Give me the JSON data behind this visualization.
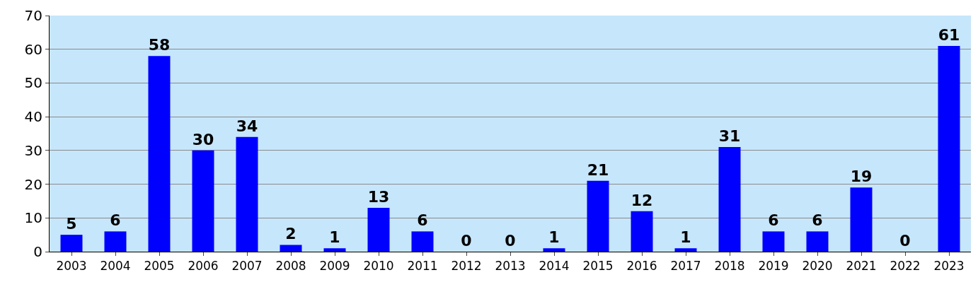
{
  "chart_data": {
    "type": "bar",
    "categories": [
      "2003",
      "2004",
      "2005",
      "2006",
      "2007",
      "2008",
      "2009",
      "2010",
      "2011",
      "2012",
      "2013",
      "2014",
      "2015",
      "2016",
      "2017",
      "2018",
      "2019",
      "2020",
      "2021",
      "2022",
      "2023"
    ],
    "values": [
      5,
      6,
      58,
      30,
      34,
      2,
      1,
      13,
      6,
      0,
      0,
      1,
      21,
      12,
      1,
      31,
      6,
      6,
      19,
      0,
      61
    ],
    "color": "#0000ff",
    "ylim": [
      0,
      70
    ],
    "yticks": [
      0,
      10,
      20,
      30,
      40,
      50,
      60,
      70
    ],
    "grid": "y",
    "data_labels": true,
    "legend": false
  }
}
